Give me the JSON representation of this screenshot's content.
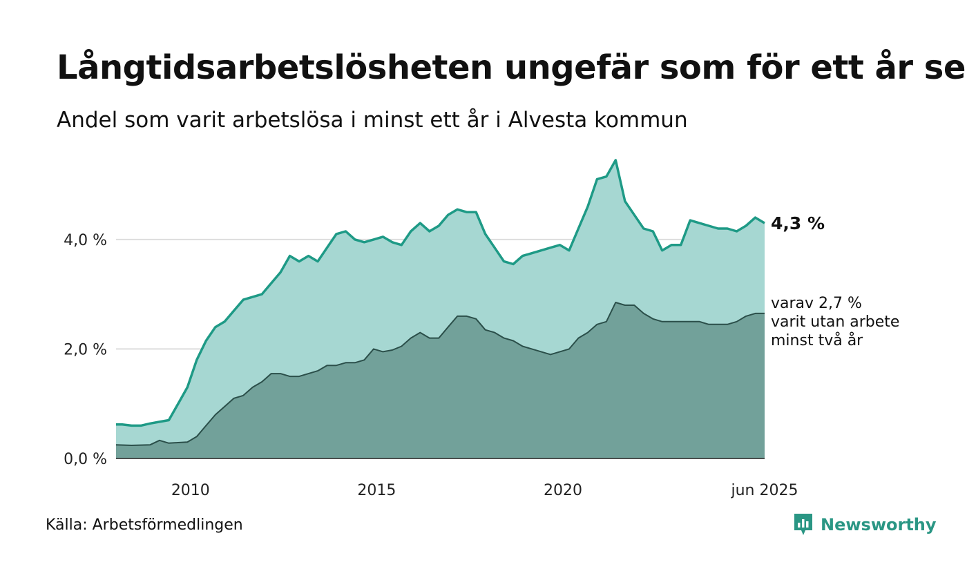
{
  "title": "Långtidsarbetslösheten ungefär som för ett år sen",
  "subtitle": "Andel som varit arbetslösa i minst ett år i Alvesta kommun",
  "source": "Källa: Arbetsförmedlingen",
  "brand": "Newsworthy",
  "colors": {
    "total_fill": "#a6d7d2",
    "total_line": "#1e9a86",
    "sub_fill": "#72a19a",
    "sub_line": "#2b4f4a",
    "grid": "#dddddd",
    "brand": "#2a9684"
  },
  "chart_data": {
    "type": "area",
    "x_range": [
      "2008-01",
      "2025-06"
    ],
    "ylim": [
      0,
      5.6
    ],
    "y_ticks": [
      {
        "value": 0,
        "label": "0,0 %"
      },
      {
        "value": 2,
        "label": "2,0 %"
      },
      {
        "value": 4,
        "label": "4,0 %"
      }
    ],
    "x_ticks": [
      {
        "value": "2010-01",
        "label": "2010"
      },
      {
        "value": "2015-01",
        "label": "2015"
      },
      {
        "value": "2020-01",
        "label": "2020"
      },
      {
        "value": "2025-06",
        "label": "jun 2025"
      }
    ],
    "grid": true,
    "end_label_total": "4,3 %",
    "end_label_sub": [
      "varav 2,7 %",
      "varit utan arbete",
      "minst två år"
    ],
    "series": [
      {
        "key": "total",
        "points": [
          [
            "2008-01",
            0.62
          ],
          [
            "2008-03",
            0.62
          ],
          [
            "2008-06",
            0.6
          ],
          [
            "2008-09",
            0.6
          ],
          [
            "2008-12",
            0.64
          ],
          [
            "2009-03",
            0.67
          ],
          [
            "2009-06",
            0.7
          ],
          [
            "2009-09",
            1.0
          ],
          [
            "2009-12",
            1.3
          ],
          [
            "2010-03",
            1.8
          ],
          [
            "2010-06",
            2.15
          ],
          [
            "2010-09",
            2.4
          ],
          [
            "2010-12",
            2.5
          ],
          [
            "2011-03",
            2.7
          ],
          [
            "2011-06",
            2.9
          ],
          [
            "2011-09",
            2.95
          ],
          [
            "2011-12",
            3.0
          ],
          [
            "2012-03",
            3.2
          ],
          [
            "2012-06",
            3.4
          ],
          [
            "2012-09",
            3.7
          ],
          [
            "2012-12",
            3.6
          ],
          [
            "2013-03",
            3.7
          ],
          [
            "2013-06",
            3.6
          ],
          [
            "2013-09",
            3.85
          ],
          [
            "2013-12",
            4.1
          ],
          [
            "2014-03",
            4.15
          ],
          [
            "2014-06",
            4.0
          ],
          [
            "2014-09",
            3.95
          ],
          [
            "2014-12",
            4.0
          ],
          [
            "2015-03",
            4.05
          ],
          [
            "2015-06",
            3.95
          ],
          [
            "2015-09",
            3.9
          ],
          [
            "2015-12",
            4.15
          ],
          [
            "2016-03",
            4.3
          ],
          [
            "2016-06",
            4.15
          ],
          [
            "2016-09",
            4.25
          ],
          [
            "2016-12",
            4.45
          ],
          [
            "2017-03",
            4.55
          ],
          [
            "2017-06",
            4.5
          ],
          [
            "2017-09",
            4.5
          ],
          [
            "2017-12",
            4.1
          ],
          [
            "2018-03",
            3.85
          ],
          [
            "2018-06",
            3.6
          ],
          [
            "2018-09",
            3.55
          ],
          [
            "2018-12",
            3.7
          ],
          [
            "2019-03",
            3.75
          ],
          [
            "2019-06",
            3.8
          ],
          [
            "2019-09",
            3.85
          ],
          [
            "2019-12",
            3.9
          ],
          [
            "2020-03",
            3.8
          ],
          [
            "2020-06",
            4.2
          ],
          [
            "2020-09",
            4.6
          ],
          [
            "2020-12",
            5.1
          ],
          [
            "2021-03",
            5.15
          ],
          [
            "2021-06",
            5.45
          ],
          [
            "2021-09",
            4.7
          ],
          [
            "2021-12",
            4.45
          ],
          [
            "2022-03",
            4.2
          ],
          [
            "2022-06",
            4.15
          ],
          [
            "2022-09",
            3.8
          ],
          [
            "2022-12",
            3.9
          ],
          [
            "2023-03",
            3.9
          ],
          [
            "2023-06",
            4.35
          ],
          [
            "2023-09",
            4.3
          ],
          [
            "2023-12",
            4.25
          ],
          [
            "2024-03",
            4.2
          ],
          [
            "2024-06",
            4.2
          ],
          [
            "2024-09",
            4.15
          ],
          [
            "2024-12",
            4.25
          ],
          [
            "2025-03",
            4.4
          ],
          [
            "2025-06",
            4.3
          ]
        ]
      },
      {
        "key": "sub",
        "points": [
          [
            "2008-01",
            0.25
          ],
          [
            "2008-06",
            0.24
          ],
          [
            "2008-12",
            0.25
          ],
          [
            "2009-03",
            0.33
          ],
          [
            "2009-06",
            0.28
          ],
          [
            "2009-09",
            0.29
          ],
          [
            "2009-12",
            0.3
          ],
          [
            "2010-03",
            0.4
          ],
          [
            "2010-06",
            0.6
          ],
          [
            "2010-09",
            0.8
          ],
          [
            "2010-12",
            0.95
          ],
          [
            "2011-03",
            1.1
          ],
          [
            "2011-06",
            1.15
          ],
          [
            "2011-09",
            1.3
          ],
          [
            "2011-12",
            1.4
          ],
          [
            "2012-03",
            1.55
          ],
          [
            "2012-06",
            1.55
          ],
          [
            "2012-09",
            1.5
          ],
          [
            "2012-12",
            1.5
          ],
          [
            "2013-03",
            1.55
          ],
          [
            "2013-06",
            1.6
          ],
          [
            "2013-09",
            1.7
          ],
          [
            "2013-12",
            1.7
          ],
          [
            "2014-03",
            1.75
          ],
          [
            "2014-06",
            1.75
          ],
          [
            "2014-09",
            1.8
          ],
          [
            "2014-12",
            2.0
          ],
          [
            "2015-03",
            1.95
          ],
          [
            "2015-06",
            1.98
          ],
          [
            "2015-09",
            2.05
          ],
          [
            "2015-12",
            2.2
          ],
          [
            "2016-03",
            2.3
          ],
          [
            "2016-06",
            2.2
          ],
          [
            "2016-09",
            2.2
          ],
          [
            "2016-12",
            2.4
          ],
          [
            "2017-03",
            2.6
          ],
          [
            "2017-06",
            2.6
          ],
          [
            "2017-09",
            2.55
          ],
          [
            "2017-12",
            2.35
          ],
          [
            "2018-03",
            2.3
          ],
          [
            "2018-06",
            2.2
          ],
          [
            "2018-09",
            2.15
          ],
          [
            "2018-12",
            2.05
          ],
          [
            "2019-03",
            2.0
          ],
          [
            "2019-06",
            1.95
          ],
          [
            "2019-09",
            1.9
          ],
          [
            "2019-12",
            1.95
          ],
          [
            "2020-03",
            2.0
          ],
          [
            "2020-06",
            2.2
          ],
          [
            "2020-09",
            2.3
          ],
          [
            "2020-12",
            2.45
          ],
          [
            "2021-03",
            2.5
          ],
          [
            "2021-06",
            2.85
          ],
          [
            "2021-09",
            2.8
          ],
          [
            "2021-12",
            2.8
          ],
          [
            "2022-03",
            2.65
          ],
          [
            "2022-06",
            2.55
          ],
          [
            "2022-09",
            2.5
          ],
          [
            "2022-12",
            2.5
          ],
          [
            "2023-03",
            2.5
          ],
          [
            "2023-06",
            2.5
          ],
          [
            "2023-09",
            2.5
          ],
          [
            "2023-12",
            2.45
          ],
          [
            "2024-03",
            2.45
          ],
          [
            "2024-06",
            2.45
          ],
          [
            "2024-09",
            2.5
          ],
          [
            "2024-12",
            2.6
          ],
          [
            "2025-03",
            2.65
          ],
          [
            "2025-06",
            2.65
          ]
        ]
      }
    ]
  }
}
